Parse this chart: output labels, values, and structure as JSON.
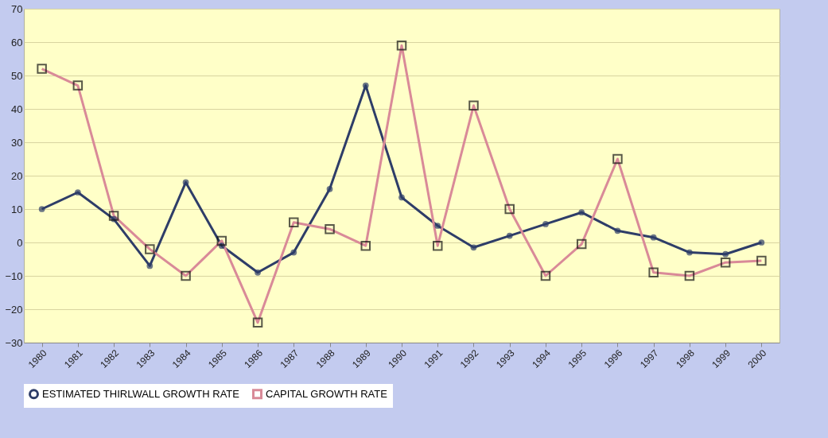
{
  "chart_data": {
    "type": "line",
    "categories": [
      "1980",
      "1981",
      "1982",
      "1983",
      "1984",
      "1985",
      "1986",
      "1987",
      "1988",
      "1989",
      "1990",
      "1991",
      "1992",
      "1993",
      "1994",
      "1995",
      "1996",
      "1997",
      "1998",
      "1999",
      "2000"
    ],
    "series": [
      {
        "name": "ESTIMATED THIRLWALL GROWTH RATE",
        "color": "#2e3d68",
        "marker": "circle",
        "values": [
          10,
          15,
          7,
          -7,
          18,
          -1,
          -9,
          -3,
          16,
          47,
          13.5,
          5,
          -1.5,
          2,
          5.5,
          9,
          3.5,
          1.5,
          -3,
          -3.5,
          0
        ]
      },
      {
        "name": "CAPITAL GROWTH RATE",
        "color": "#d98a98",
        "marker": "square",
        "values": [
          52,
          47,
          8,
          -2,
          -10,
          0.5,
          -24,
          6,
          4,
          -1,
          59,
          -1,
          41,
          10,
          -10,
          -0.5,
          25,
          -9,
          -10,
          -6,
          -5.5
        ]
      }
    ],
    "ylim": [
      -30,
      70
    ],
    "yticks": [
      -30,
      -20,
      -10,
      0,
      10,
      20,
      30,
      40,
      50,
      60,
      70
    ],
    "grid": "y",
    "legend": "bottom"
  }
}
